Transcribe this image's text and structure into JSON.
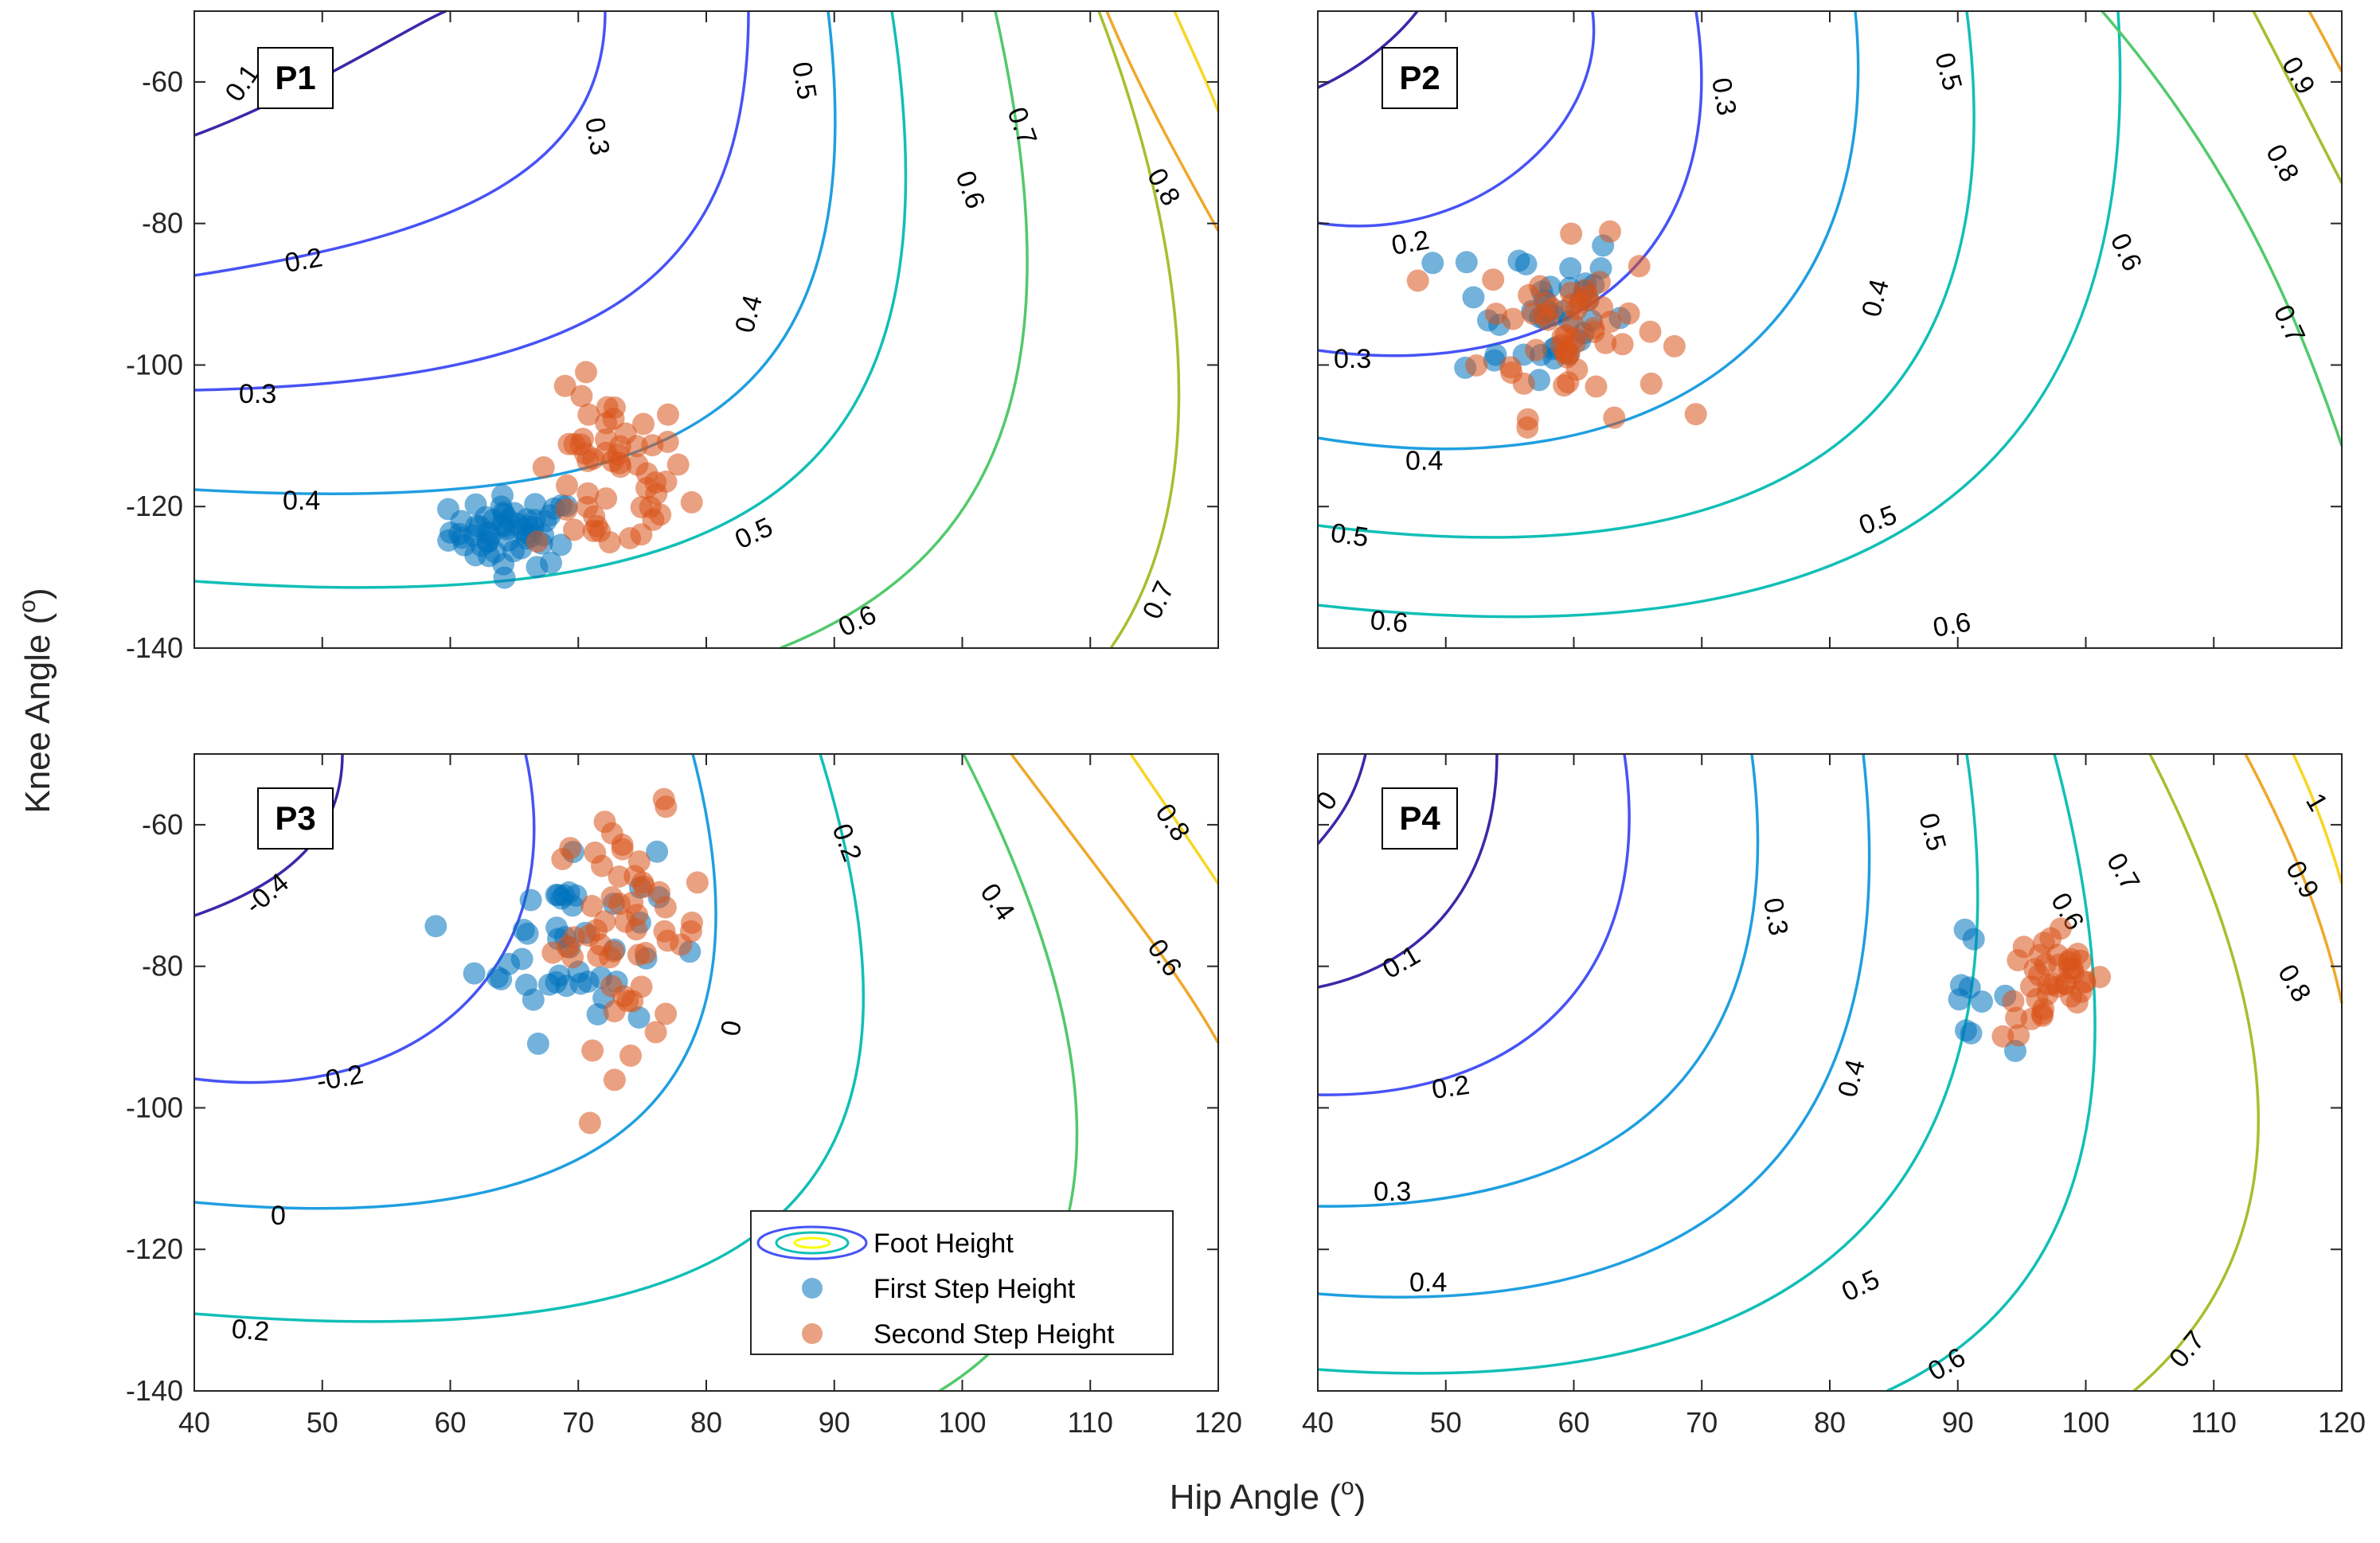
{
  "colors": {
    "first_step": "#0072BD",
    "second_step": "#D95319",
    "axes": "#262626",
    "contour_scale": [
      "#3E26A8",
      "#4753F5",
      "#1F9FE0",
      "#11BFB6",
      "#52C96B",
      "#A6BF2E",
      "#F0A72A",
      "#F9D523",
      "#F9FB0E"
    ]
  },
  "figure": {
    "xlabel": "Hip Angle (",
    "xlabel_sup": "o",
    "xlabel_close": ")",
    "ylabel": "Knee Angle (",
    "ylabel_sup": "o",
    "ylabel_close": ")"
  },
  "legend": {
    "items": [
      {
        "label": "Foot Height",
        "marker": "contour"
      },
      {
        "label": "First Step Height",
        "marker": "dot-blue"
      },
      {
        "label": "Second Step Height",
        "marker": "dot-orange"
      }
    ]
  },
  "chart_data": [
    {
      "type": "scatter",
      "title": "P1",
      "xlim": [
        40,
        120
      ],
      "ylim": [
        -140,
        -50
      ],
      "x_ticks": [
        40,
        50,
        60,
        70,
        80,
        90,
        100,
        110,
        120
      ],
      "y_ticks": [
        -140,
        -120,
        -100,
        -80,
        -60
      ],
      "x_tick_labels_shown": false,
      "y_tick_labels_shown": true,
      "contour_levels": [
        "0.1",
        "0.2",
        "0.3",
        "0.4",
        "0.5",
        "0.6",
        "0.7",
        "0.8"
      ],
      "series": [
        {
          "name": "First Step Height",
          "center": [
            65,
            -123.5
          ],
          "spread": [
            2.5,
            2.5
          ],
          "n": 55
        },
        {
          "name": "Second Step Height",
          "center": [
            72.5,
            -116
          ],
          "spread": [
            3,
            6
          ],
          "n": 55
        }
      ]
    },
    {
      "type": "scatter",
      "title": "P2",
      "xlim": [
        40,
        120
      ],
      "ylim": [
        -140,
        -50
      ],
      "x_ticks": [
        40,
        50,
        60,
        70,
        80,
        90,
        100,
        110,
        120
      ],
      "y_ticks": [
        -140,
        -120,
        -100,
        -80,
        -60
      ],
      "x_tick_labels_shown": false,
      "y_tick_labels_shown": false,
      "contour_levels": [
        "0.2",
        "0.3",
        "0.4",
        "0.5",
        "0.6",
        "0.7",
        "0.8",
        "0.9"
      ],
      "series": [
        {
          "name": "First Step Height",
          "center": [
            57,
            -92
          ],
          "spread": [
            3.5,
            6
          ],
          "n": 40
        },
        {
          "name": "Second Step Height",
          "center": [
            60,
            -95
          ],
          "spread": [
            3.5,
            6
          ],
          "n": 55
        }
      ]
    },
    {
      "type": "scatter",
      "title": "P3",
      "xlim": [
        40,
        120
      ],
      "ylim": [
        -140,
        -50
      ],
      "x_ticks": [
        40,
        50,
        60,
        70,
        80,
        90,
        100,
        110,
        120
      ],
      "y_ticks": [
        -140,
        -120,
        -100,
        -80,
        -60
      ],
      "x_tick_labels_shown": true,
      "y_tick_labels_shown": true,
      "contour_levels": [
        "-0.4",
        "-0.2",
        "0",
        "0.2",
        "0.4",
        "0.6",
        "0.8"
      ],
      "series": [
        {
          "name": "First Step Height",
          "center": [
            69,
            -76
          ],
          "spread": [
            3.5,
            7
          ],
          "n": 45
        },
        {
          "name": "Second Step Height",
          "center": [
            74,
            -75
          ],
          "spread": [
            3,
            8
          ],
          "n": 55
        }
      ]
    },
    {
      "type": "scatter",
      "title": "P4",
      "xlim": [
        40,
        120
      ],
      "ylim": [
        -140,
        -50
      ],
      "x_ticks": [
        40,
        50,
        60,
        70,
        80,
        90,
        100,
        110,
        120
      ],
      "y_ticks": [
        -140,
        -120,
        -100,
        -80,
        -60
      ],
      "x_tick_labels_shown": true,
      "y_tick_labels_shown": false,
      "contour_levels": [
        "0",
        "0.1",
        "0.2",
        "0.3",
        "0.4",
        "0.5",
        "0.6",
        "0.7",
        "0.8",
        "0.9",
        "1"
      ],
      "series": [
        {
          "name": "First Step Height",
          "center": [
            90,
            -83
          ],
          "spread": [
            2,
            3.5
          ],
          "n": 10
        },
        {
          "name": "Second Step Height",
          "center": [
            97.5,
            -82.5
          ],
          "spread": [
            2,
            4
          ],
          "n": 40
        }
      ]
    }
  ]
}
